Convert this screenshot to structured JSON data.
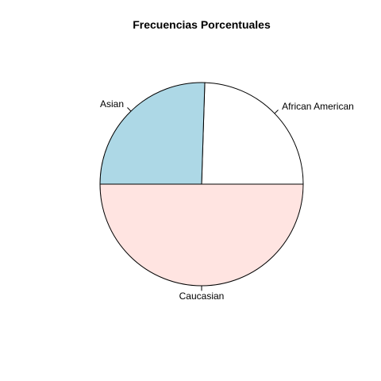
{
  "chart_data": {
    "type": "pie",
    "title": "Frecuencias Porcentuales",
    "labels": [
      "African American",
      "Asian",
      "Caucasian"
    ],
    "values": [
      24.5,
      25.5,
      50.0
    ],
    "colors": [
      "#ffffff",
      "#add8e6",
      "#ffe4e1"
    ],
    "start_angle_deg": 0,
    "direction": "counterclockwise"
  }
}
